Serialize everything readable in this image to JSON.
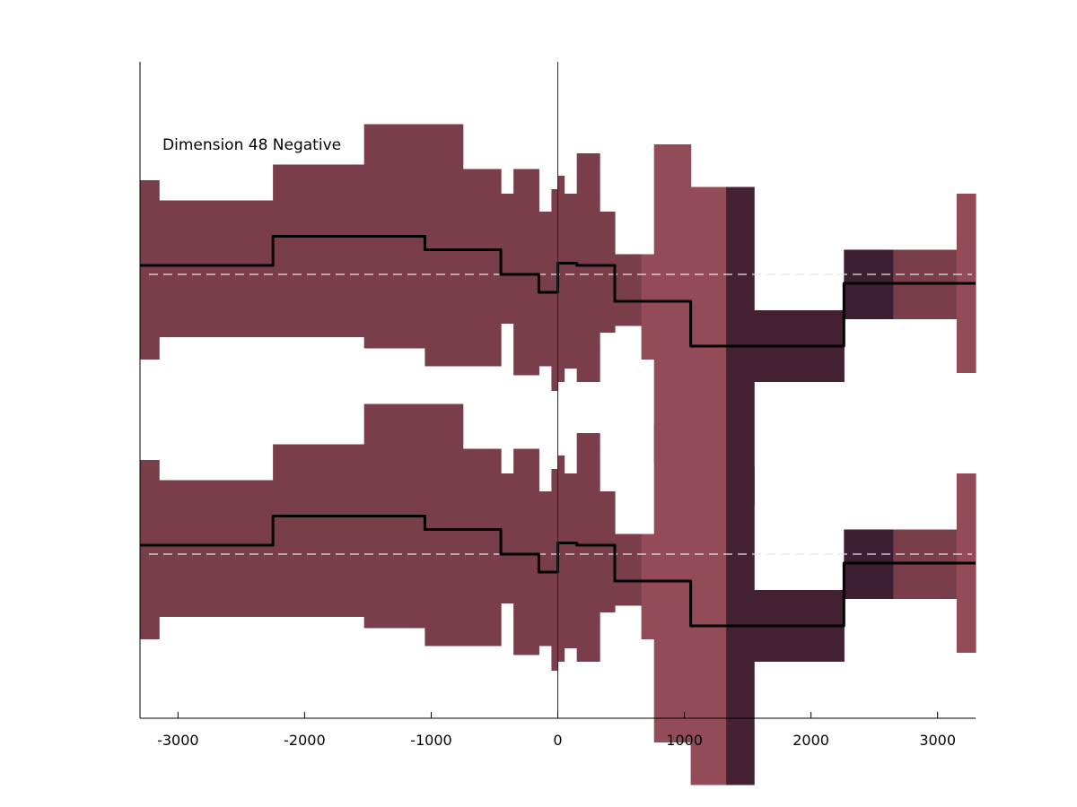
{
  "chart_data": {
    "type": "area",
    "title": "",
    "xlabel": "",
    "ylabel": "",
    "annotation": "Dimension 48 Negative",
    "xlim": [
      -3300,
      3300
    ],
    "grid": false,
    "legend": "none",
    "x_ticks": [
      -3000,
      -2000,
      -1000,
      0,
      1000,
      2000,
      3000
    ],
    "x_tick_labels": [
      "-3000",
      "-2000",
      "-1000",
      "0",
      "1000",
      "2000",
      "3000"
    ],
    "reference_line_x": 0,
    "colors": {
      "band_default": "#7a3e4b",
      "band_light": "#944b58",
      "band_dark": "#452233",
      "band_darker": "#3e1f31",
      "step_line": "#000000",
      "baseline_dash": "#e8e8e8",
      "zero_line": "#1a1aa0",
      "axis": "#000000"
    },
    "panels_note": "Two identical stacked panels, each y in [-1, 1] (no y tick labels).",
    "segments": [
      {
        "x0": -3300,
        "x1": -3150,
        "low": -0.38,
        "high": 0.42,
        "mean": 0.04,
        "shade": "default"
      },
      {
        "x0": -3150,
        "x1": -2250,
        "low": -0.28,
        "high": 0.33,
        "mean": 0.04,
        "shade": "default"
      },
      {
        "x0": -2250,
        "x1": -1530,
        "low": -0.28,
        "high": 0.49,
        "mean": 0.17,
        "shade": "default"
      },
      {
        "x0": -1530,
        "x1": -1050,
        "low": -0.33,
        "high": 0.67,
        "mean": 0.17,
        "shade": "default"
      },
      {
        "x0": -1050,
        "x1": -750,
        "low": -0.41,
        "high": 0.67,
        "mean": 0.11,
        "shade": "default"
      },
      {
        "x0": -750,
        "x1": -450,
        "low": -0.41,
        "high": 0.47,
        "mean": 0.11,
        "shade": "default"
      },
      {
        "x0": -450,
        "x1": -350,
        "low": -0.22,
        "high": 0.36,
        "mean": 0.0,
        "shade": "default"
      },
      {
        "x0": -350,
        "x1": -150,
        "low": -0.45,
        "high": 0.47,
        "mean": 0.0,
        "shade": "default"
      },
      {
        "x0": -150,
        "x1": -50,
        "low": -0.41,
        "high": 0.28,
        "mean": -0.08,
        "shade": "default"
      },
      {
        "x0": -50,
        "x1": 0,
        "low": -0.52,
        "high": 0.38,
        "mean": -0.08,
        "shade": "default"
      },
      {
        "x0": 0,
        "x1": 50,
        "low": -0.48,
        "high": 0.44,
        "mean": 0.05,
        "shade": "default"
      },
      {
        "x0": 50,
        "x1": 150,
        "low": -0.42,
        "high": 0.36,
        "mean": 0.05,
        "shade": "default"
      },
      {
        "x0": 150,
        "x1": 330,
        "low": -0.48,
        "high": 0.54,
        "mean": 0.04,
        "shade": "default"
      },
      {
        "x0": 330,
        "x1": 450,
        "low": -0.26,
        "high": 0.28,
        "mean": 0.04,
        "shade": "default"
      },
      {
        "x0": 450,
        "x1": 660,
        "low": -0.23,
        "high": 0.09,
        "mean": -0.12,
        "shade": "default"
      },
      {
        "x0": 660,
        "x1": 760,
        "low": -0.38,
        "high": 0.09,
        "mean": -0.12,
        "shade": "light"
      },
      {
        "x0": 760,
        "x1": 1050,
        "low": -0.84,
        "high": 0.58,
        "mean": -0.12,
        "shade": "light"
      },
      {
        "x0": 1050,
        "x1": 1330,
        "low": -1.03,
        "high": 0.39,
        "mean": -0.32,
        "shade": "light"
      },
      {
        "x0": 1330,
        "x1": 1550,
        "low": -1.03,
        "high": 0.39,
        "mean": -0.32,
        "shade": "dark"
      },
      {
        "x0": 1550,
        "x1": 2260,
        "low": -0.48,
        "high": -0.16,
        "mean": -0.32,
        "shade": "dark"
      },
      {
        "x0": 2260,
        "x1": 2650,
        "low": -0.2,
        "high": 0.11,
        "mean": -0.04,
        "shade": "darker"
      },
      {
        "x0": 2650,
        "x1": 3150,
        "low": -0.2,
        "high": 0.11,
        "mean": -0.04,
        "shade": "default"
      },
      {
        "x0": 3150,
        "x1": 3300,
        "low": -0.44,
        "high": 0.36,
        "mean": -0.04,
        "shade": "light"
      }
    ]
  }
}
